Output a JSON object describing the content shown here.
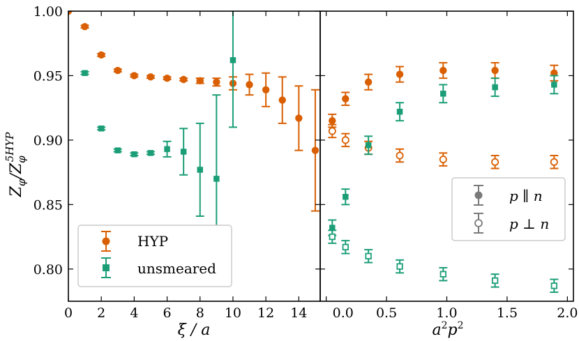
{
  "colors": {
    "hyp": "#d95f02",
    "unsmeared": "#1b9e77",
    "gray": "#7a7a7a",
    "axis": "#000000",
    "legend_border": "#cccccc"
  },
  "chart_data": [
    {
      "type": "scatter",
      "panel": "left",
      "xlabel": "ξ / a",
      "ylabel": "Z_φ / Z_φ^5HYP",
      "ylabel_parts": {
        "base": "Z",
        "sub": "φ",
        "slash": "/",
        "base2": "Z",
        "sub2": "φ",
        "sup2": "5HYP"
      },
      "xlim": [
        0,
        15.3
      ],
      "ylim": [
        0.775,
        1.0
      ],
      "xticks": [
        0,
        2,
        4,
        6,
        8,
        10,
        12,
        14
      ],
      "yticks": [
        0.8,
        0.85,
        0.9,
        0.95,
        1.0
      ],
      "ytick_labels": [
        "0.80",
        "0.85",
        "0.90",
        "0.95",
        "1.00"
      ],
      "legend": {
        "placement": "bottom-left",
        "entries": [
          "HYP",
          "unsmeared"
        ]
      },
      "series": [
        {
          "name": "HYP",
          "marker": "circle",
          "filled": true,
          "color": "#d95f02",
          "x": [
            0,
            1,
            2,
            3,
            4,
            5,
            6,
            7,
            8,
            9,
            10,
            11,
            12,
            13,
            14,
            15
          ],
          "y": [
            1.0,
            0.988,
            0.966,
            0.954,
            0.95,
            0.949,
            0.948,
            0.947,
            0.946,
            0.945,
            0.944,
            0.943,
            0.939,
            0.931,
            0.917,
            0.892
          ],
          "err": [
            0.0,
            0.001,
            0.001,
            0.001,
            0.001,
            0.001,
            0.001,
            0.001,
            0.002,
            0.003,
            0.005,
            0.008,
            0.013,
            0.018,
            0.025,
            0.047
          ]
        },
        {
          "name": "unsmeared",
          "marker": "square",
          "filled": true,
          "color": "#1b9e77",
          "x": [
            1,
            2,
            3,
            4,
            5,
            6,
            7,
            8,
            9,
            10
          ],
          "y": [
            0.952,
            0.909,
            0.892,
            0.889,
            0.89,
            0.893,
            0.891,
            0.877,
            0.87,
            0.962
          ],
          "err": [
            0.001,
            0.001,
            0.001,
            0.001,
            0.001,
            0.006,
            0.018,
            0.036,
            0.065,
            0.052
          ]
        }
      ]
    },
    {
      "type": "scatter",
      "panel": "right",
      "xlabel": "a²p²",
      "xlabel_parts": {
        "a": "a",
        "a_sup": "2",
        "p": "p",
        "p_sup": "2"
      },
      "xlim": [
        -0.05,
        2.05
      ],
      "ylim": [
        0.775,
        1.0
      ],
      "xticks": [
        0.0,
        0.5,
        1.0,
        1.5,
        2.0
      ],
      "xtick_labels": [
        "0.0",
        "0.5",
        "1.0",
        "1.5",
        "2.0"
      ],
      "legend": {
        "placement": "middle-right",
        "entries": [
          "p ∥ n",
          "p ⊥ n"
        ]
      },
      "series": [
        {
          "name": "HYP p ∥ n",
          "marker": "circle",
          "filled": true,
          "color": "#d95f02",
          "x": [
            0.05,
            0.16,
            0.35,
            0.61,
            0.97,
            1.4,
            1.89
          ],
          "y": [
            0.915,
            0.932,
            0.945,
            0.951,
            0.954,
            0.954,
            0.952
          ],
          "err": [
            0.005,
            0.005,
            0.006,
            0.006,
            0.006,
            0.006,
            0.006
          ]
        },
        {
          "name": "HYP p ⊥ n",
          "marker": "circle",
          "filled": false,
          "color": "#d95f02",
          "x": [
            0.05,
            0.16,
            0.35,
            0.61,
            0.97,
            1.4,
            1.89
          ],
          "y": [
            0.907,
            0.9,
            0.894,
            0.888,
            0.885,
            0.883,
            0.883
          ],
          "err": [
            0.005,
            0.005,
            0.005,
            0.005,
            0.005,
            0.005,
            0.005
          ]
        },
        {
          "name": "unsmeared p ∥ n",
          "marker": "square",
          "filled": true,
          "color": "#1b9e77",
          "x": [
            0.05,
            0.16,
            0.35,
            0.61,
            0.97,
            1.4,
            1.89
          ],
          "y": [
            0.832,
            0.856,
            0.896,
            0.922,
            0.936,
            0.941,
            0.943
          ],
          "err": [
            0.006,
            0.006,
            0.007,
            0.007,
            0.007,
            0.007,
            0.007
          ]
        },
        {
          "name": "unsmeared p ⊥ n",
          "marker": "square",
          "filled": false,
          "color": "#1b9e77",
          "x": [
            0.05,
            0.16,
            0.35,
            0.61,
            0.97,
            1.4,
            1.89
          ],
          "y": [
            0.825,
            0.817,
            0.81,
            0.802,
            0.796,
            0.791,
            0.787
          ],
          "err": [
            0.005,
            0.005,
            0.005,
            0.005,
            0.005,
            0.005,
            0.005
          ]
        }
      ]
    }
  ]
}
